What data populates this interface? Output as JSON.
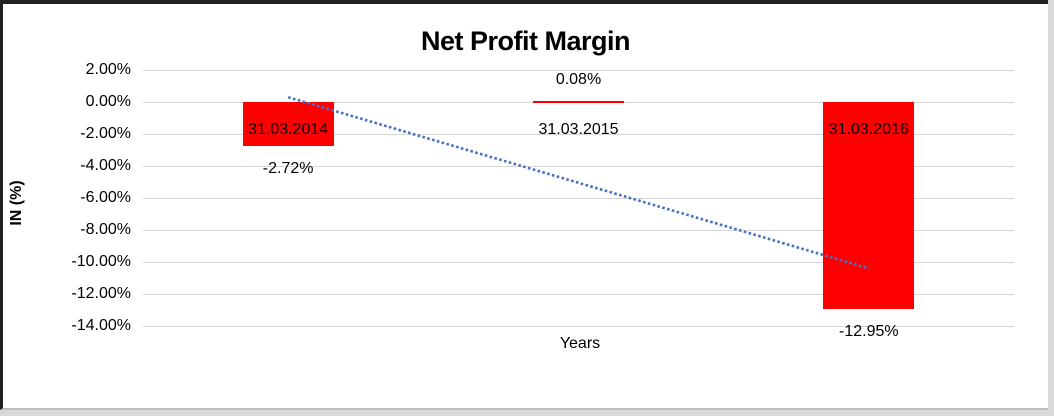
{
  "chart": {
    "title": "Net Profit Margin",
    "x_axis_title": "Years",
    "y_axis_title": "IN (%)"
  },
  "chart_data": {
    "type": "bar",
    "title": "Net Profit Margin",
    "xlabel": "Years",
    "ylabel": "IN (%)",
    "categories": [
      "31.03.2014",
      "31.03.2015",
      "31.03.2016"
    ],
    "values": [
      -2.72,
      0.08,
      -12.95
    ],
    "value_labels": [
      "-2.72%",
      "0.08%",
      "-12.95%"
    ],
    "ylim": [
      -14,
      2
    ],
    "ytick_values": [
      2,
      0,
      -2,
      -4,
      -6,
      -8,
      -10,
      -12,
      -14
    ],
    "ytick_labels": [
      "2.00%",
      "0.00%",
      "-2.00%",
      "-4.00%",
      "-6.00%",
      "-8.00%",
      "-10.00%",
      "-12.00%",
      "-14.00%"
    ],
    "grid": true,
    "legend": false,
    "colors": {
      "bar": "#FF0000",
      "trendline": "#4472C4",
      "gridline": "#D6D6D6",
      "text": "#000000",
      "frame_border": "#222222",
      "outer_background": "#D9D9D9"
    },
    "trendline": {
      "type": "linear",
      "style": "dotted",
      "color": "#4472C4",
      "start_category_index": 0,
      "end_category_index": 2,
      "start_pct": 0.3,
      "end_pct": -10.4
    }
  }
}
